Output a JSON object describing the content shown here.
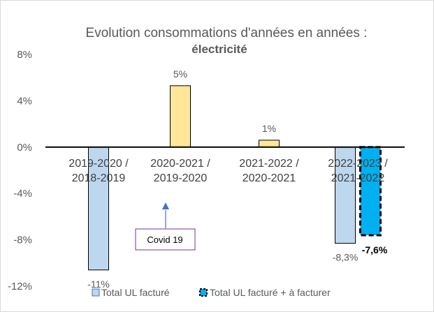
{
  "chart_data": {
    "type": "bar",
    "title": "Evolution consommations d'années en années :",
    "subtitle": "électricité",
    "categories": [
      "2019-2020 / 2018-2019",
      "2020-2021 / 2019-2020",
      "2021-2022 / 2020-2021",
      "2022-2023 / 2021-2022"
    ],
    "category_lines": [
      [
        "2019-2020 /",
        "2018-2019"
      ],
      [
        "2020-2021 /",
        "2019-2020"
      ],
      [
        "2021-2022 /",
        "2020-2021"
      ],
      [
        "2022-2023 /",
        "2021-2022"
      ]
    ],
    "ylim": [
      -12,
      8
    ],
    "yticks": [
      8,
      4,
      0,
      -4,
      -8,
      -12
    ],
    "ytick_labels": [
      "8%",
      "4%",
      "0%",
      "-4%",
      "-8%",
      "-12%"
    ],
    "series": [
      {
        "name": "Total UL facturé",
        "values": [
          -10.6,
          5.3,
          0.6,
          -8.3
        ],
        "labels": [
          "-11%",
          "5%",
          "1%",
          "-8,3%"
        ],
        "colors": [
          "#bdd7ee",
          "#ffe699",
          "#ffe699",
          "#bdd7ee"
        ]
      },
      {
        "name": "Total UL facturé + à facturer",
        "values": [
          null,
          null,
          null,
          -7.6
        ],
        "labels": [
          "",
          "",
          "",
          "-7,6%"
        ],
        "color": "#00b0f0"
      }
    ],
    "legend_position": "bottom",
    "annotation": {
      "text": "Covid 19"
    }
  },
  "colors": {
    "axis": "#000000",
    "text": "#595959",
    "bar_negative": "#bdd7ee",
    "bar_positive": "#ffe699",
    "bar_to_invoice": "#00b0f0",
    "arrow": "#4472c4",
    "annotation_border": "#7030a0"
  }
}
